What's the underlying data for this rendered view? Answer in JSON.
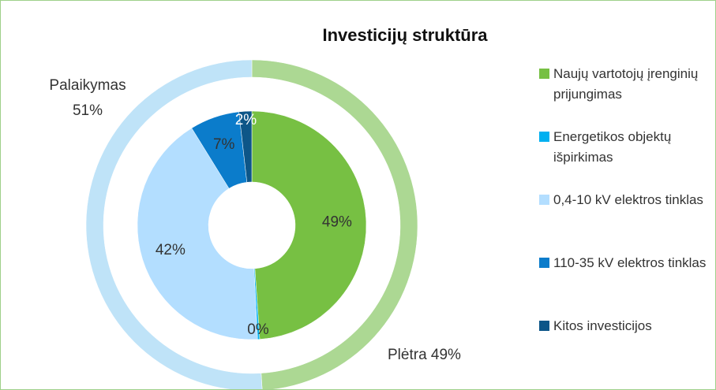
{
  "chart_data": {
    "type": "nested-donut",
    "title": "Investicijų struktūra",
    "inner": {
      "categories": [
        "Naujų vartotojų įrenginių prijungimas",
        "Energetikos objektų išpirkimas",
        "0,4-10 kV elektros tinklas",
        "110-35 kV elektros tinklas",
        "Kitos investicijos"
      ],
      "values": [
        48.9,
        0.3,
        42,
        7,
        1.8
      ],
      "value_labels": [
        "49%",
        "0%",
        "42%",
        "7%",
        "2%"
      ],
      "colors": [
        "#77c043",
        "#00b0f0",
        "#b3deff",
        "#0b7ccb",
        "#0d5688"
      ]
    },
    "outer": {
      "categories": [
        "Plėtra",
        "Palaikymas"
      ],
      "values": [
        49,
        51
      ],
      "value_labels": [
        "49%",
        "51%"
      ],
      "colors": [
        "#acd893",
        "#bfe3f8"
      ]
    },
    "legend": "right"
  }
}
